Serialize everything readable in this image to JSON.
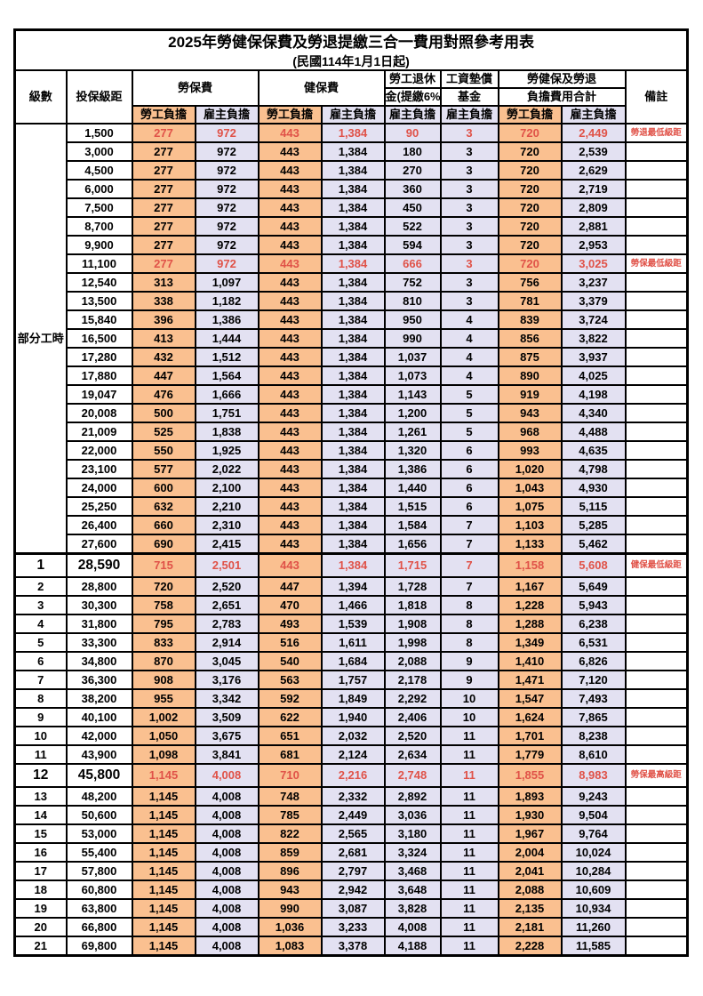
{
  "title": "2025年勞健保保費及勞退提繳三合一費用對照參考用表",
  "subtitle": "(民國114年1月1日起)",
  "colors": {
    "employee_bg": "#FAC090",
    "employer_bg": "#E3E1F2",
    "highlight_red": "#E05248",
    "border": "#000000"
  },
  "header": {
    "level": "級數",
    "bracket": "投保級距",
    "labor_insurance": "勞保費",
    "health_insurance": "健保費",
    "pension_line1": "勞工退休",
    "pension_line2": "金(提繳6%)",
    "wage_fund_line1": "工資墊償",
    "wage_fund_line2": "基金",
    "total_line1": "勞健保及勞退",
    "total_line2": "負擔費用合計",
    "remark": "備註",
    "employee": "勞工負擔",
    "employer": "雇主負擔"
  },
  "part_time_label": "部分工時",
  "part_time_span": 23,
  "rows": [
    {
      "level": null,
      "bracket": "1,500",
      "v": [
        "277",
        "972",
        "443",
        "1,384",
        "90",
        "3",
        "720",
        "2,449"
      ],
      "remark": "勞退最低級距",
      "hl": true,
      "big": false,
      "sect": false
    },
    {
      "level": null,
      "bracket": "3,000",
      "v": [
        "277",
        "972",
        "443",
        "1,384",
        "180",
        "3",
        "720",
        "2,539"
      ],
      "remark": "",
      "hl": false,
      "big": false,
      "sect": false
    },
    {
      "level": null,
      "bracket": "4,500",
      "v": [
        "277",
        "972",
        "443",
        "1,384",
        "270",
        "3",
        "720",
        "2,629"
      ],
      "remark": "",
      "hl": false,
      "big": false,
      "sect": false
    },
    {
      "level": null,
      "bracket": "6,000",
      "v": [
        "277",
        "972",
        "443",
        "1,384",
        "360",
        "3",
        "720",
        "2,719"
      ],
      "remark": "",
      "hl": false,
      "big": false,
      "sect": false
    },
    {
      "level": null,
      "bracket": "7,500",
      "v": [
        "277",
        "972",
        "443",
        "1,384",
        "450",
        "3",
        "720",
        "2,809"
      ],
      "remark": "",
      "hl": false,
      "big": false,
      "sect": false
    },
    {
      "level": null,
      "bracket": "8,700",
      "v": [
        "277",
        "972",
        "443",
        "1,384",
        "522",
        "3",
        "720",
        "2,881"
      ],
      "remark": "",
      "hl": false,
      "big": false,
      "sect": false
    },
    {
      "level": null,
      "bracket": "9,900",
      "v": [
        "277",
        "972",
        "443",
        "1,384",
        "594",
        "3",
        "720",
        "2,953"
      ],
      "remark": "",
      "hl": false,
      "big": false,
      "sect": false
    },
    {
      "level": null,
      "bracket": "11,100",
      "v": [
        "277",
        "972",
        "443",
        "1,384",
        "666",
        "3",
        "720",
        "3,025"
      ],
      "remark": "勞保最低級距",
      "hl": true,
      "big": false,
      "sect": false
    },
    {
      "level": null,
      "bracket": "12,540",
      "v": [
        "313",
        "1,097",
        "443",
        "1,384",
        "752",
        "3",
        "756",
        "3,237"
      ],
      "remark": "",
      "hl": false,
      "big": false,
      "sect": false
    },
    {
      "level": null,
      "bracket": "13,500",
      "v": [
        "338",
        "1,182",
        "443",
        "1,384",
        "810",
        "3",
        "781",
        "3,379"
      ],
      "remark": "",
      "hl": false,
      "big": false,
      "sect": false
    },
    {
      "level": null,
      "bracket": "15,840",
      "v": [
        "396",
        "1,386",
        "443",
        "1,384",
        "950",
        "4",
        "839",
        "3,724"
      ],
      "remark": "",
      "hl": false,
      "big": false,
      "sect": false
    },
    {
      "level": null,
      "bracket": "16,500",
      "v": [
        "413",
        "1,444",
        "443",
        "1,384",
        "990",
        "4",
        "856",
        "3,822"
      ],
      "remark": "",
      "hl": false,
      "big": false,
      "sect": false
    },
    {
      "level": null,
      "bracket": "17,280",
      "v": [
        "432",
        "1,512",
        "443",
        "1,384",
        "1,037",
        "4",
        "875",
        "3,937"
      ],
      "remark": "",
      "hl": false,
      "big": false,
      "sect": false
    },
    {
      "level": null,
      "bracket": "17,880",
      "v": [
        "447",
        "1,564",
        "443",
        "1,384",
        "1,073",
        "4",
        "890",
        "4,025"
      ],
      "remark": "",
      "hl": false,
      "big": false,
      "sect": false
    },
    {
      "level": null,
      "bracket": "19,047",
      "v": [
        "476",
        "1,666",
        "443",
        "1,384",
        "1,143",
        "5",
        "919",
        "4,198"
      ],
      "remark": "",
      "hl": false,
      "big": false,
      "sect": false
    },
    {
      "level": null,
      "bracket": "20,008",
      "v": [
        "500",
        "1,751",
        "443",
        "1,384",
        "1,200",
        "5",
        "943",
        "4,340"
      ],
      "remark": "",
      "hl": false,
      "big": false,
      "sect": false
    },
    {
      "level": null,
      "bracket": "21,009",
      "v": [
        "525",
        "1,838",
        "443",
        "1,384",
        "1,261",
        "5",
        "968",
        "4,488"
      ],
      "remark": "",
      "hl": false,
      "big": false,
      "sect": false
    },
    {
      "level": null,
      "bracket": "22,000",
      "v": [
        "550",
        "1,925",
        "443",
        "1,384",
        "1,320",
        "6",
        "993",
        "4,635"
      ],
      "remark": "",
      "hl": false,
      "big": false,
      "sect": false
    },
    {
      "level": null,
      "bracket": "23,100",
      "v": [
        "577",
        "2,022",
        "443",
        "1,384",
        "1,386",
        "6",
        "1,020",
        "4,798"
      ],
      "remark": "",
      "hl": false,
      "big": false,
      "sect": false
    },
    {
      "level": null,
      "bracket": "24,000",
      "v": [
        "600",
        "2,100",
        "443",
        "1,384",
        "1,440",
        "6",
        "1,043",
        "4,930"
      ],
      "remark": "",
      "hl": false,
      "big": false,
      "sect": false
    },
    {
      "level": null,
      "bracket": "25,250",
      "v": [
        "632",
        "2,210",
        "443",
        "1,384",
        "1,515",
        "6",
        "1,075",
        "5,115"
      ],
      "remark": "",
      "hl": false,
      "big": false,
      "sect": false
    },
    {
      "level": null,
      "bracket": "26,400",
      "v": [
        "660",
        "2,310",
        "443",
        "1,384",
        "1,584",
        "7",
        "1,103",
        "5,285"
      ],
      "remark": "",
      "hl": false,
      "big": false,
      "sect": false
    },
    {
      "level": null,
      "bracket": "27,600",
      "v": [
        "690",
        "2,415",
        "443",
        "1,384",
        "1,656",
        "7",
        "1,133",
        "5,462"
      ],
      "remark": "",
      "hl": false,
      "big": false,
      "sect": false
    },
    {
      "level": "1",
      "bracket": "28,590",
      "v": [
        "715",
        "2,501",
        "443",
        "1,384",
        "1,715",
        "7",
        "1,158",
        "5,608"
      ],
      "remark": "健保最低級距",
      "hl": true,
      "big": true,
      "sect": true
    },
    {
      "level": "2",
      "bracket": "28,800",
      "v": [
        "720",
        "2,520",
        "447",
        "1,394",
        "1,728",
        "7",
        "1,167",
        "5,649"
      ],
      "remark": "",
      "hl": false,
      "big": false,
      "sect": false
    },
    {
      "level": "3",
      "bracket": "30,300",
      "v": [
        "758",
        "2,651",
        "470",
        "1,466",
        "1,818",
        "8",
        "1,228",
        "5,943"
      ],
      "remark": "",
      "hl": false,
      "big": false,
      "sect": false
    },
    {
      "level": "4",
      "bracket": "31,800",
      "v": [
        "795",
        "2,783",
        "493",
        "1,539",
        "1,908",
        "8",
        "1,288",
        "6,238"
      ],
      "remark": "",
      "hl": false,
      "big": false,
      "sect": false
    },
    {
      "level": "5",
      "bracket": "33,300",
      "v": [
        "833",
        "2,914",
        "516",
        "1,611",
        "1,998",
        "8",
        "1,349",
        "6,531"
      ],
      "remark": "",
      "hl": false,
      "big": false,
      "sect": false
    },
    {
      "level": "6",
      "bracket": "34,800",
      "v": [
        "870",
        "3,045",
        "540",
        "1,684",
        "2,088",
        "9",
        "1,410",
        "6,826"
      ],
      "remark": "",
      "hl": false,
      "big": false,
      "sect": false
    },
    {
      "level": "7",
      "bracket": "36,300",
      "v": [
        "908",
        "3,176",
        "563",
        "1,757",
        "2,178",
        "9",
        "1,471",
        "7,120"
      ],
      "remark": "",
      "hl": false,
      "big": false,
      "sect": false
    },
    {
      "level": "8",
      "bracket": "38,200",
      "v": [
        "955",
        "3,342",
        "592",
        "1,849",
        "2,292",
        "10",
        "1,547",
        "7,493"
      ],
      "remark": "",
      "hl": false,
      "big": false,
      "sect": false
    },
    {
      "level": "9",
      "bracket": "40,100",
      "v": [
        "1,002",
        "3,509",
        "622",
        "1,940",
        "2,406",
        "10",
        "1,624",
        "7,865"
      ],
      "remark": "",
      "hl": false,
      "big": false,
      "sect": false
    },
    {
      "level": "10",
      "bracket": "42,000",
      "v": [
        "1,050",
        "3,675",
        "651",
        "2,032",
        "2,520",
        "11",
        "1,701",
        "8,238"
      ],
      "remark": "",
      "hl": false,
      "big": false,
      "sect": false
    },
    {
      "level": "11",
      "bracket": "43,900",
      "v": [
        "1,098",
        "3,841",
        "681",
        "2,124",
        "2,634",
        "11",
        "1,779",
        "8,610"
      ],
      "remark": "",
      "hl": false,
      "big": false,
      "sect": false
    },
    {
      "level": "12",
      "bracket": "45,800",
      "v": [
        "1,145",
        "4,008",
        "710",
        "2,216",
        "2,748",
        "11",
        "1,855",
        "8,983"
      ],
      "remark": "勞保最高級距",
      "hl": true,
      "big": true,
      "sect": false
    },
    {
      "level": "13",
      "bracket": "48,200",
      "v": [
        "1,145",
        "4,008",
        "748",
        "2,332",
        "2,892",
        "11",
        "1,893",
        "9,243"
      ],
      "remark": "",
      "hl": false,
      "big": false,
      "sect": false
    },
    {
      "level": "14",
      "bracket": "50,600",
      "v": [
        "1,145",
        "4,008",
        "785",
        "2,449",
        "3,036",
        "11",
        "1,930",
        "9,504"
      ],
      "remark": "",
      "hl": false,
      "big": false,
      "sect": false
    },
    {
      "level": "15",
      "bracket": "53,000",
      "v": [
        "1,145",
        "4,008",
        "822",
        "2,565",
        "3,180",
        "11",
        "1,967",
        "9,764"
      ],
      "remark": "",
      "hl": false,
      "big": false,
      "sect": false
    },
    {
      "level": "16",
      "bracket": "55,400",
      "v": [
        "1,145",
        "4,008",
        "859",
        "2,681",
        "3,324",
        "11",
        "2,004",
        "10,024"
      ],
      "remark": "",
      "hl": false,
      "big": false,
      "sect": false
    },
    {
      "level": "17",
      "bracket": "57,800",
      "v": [
        "1,145",
        "4,008",
        "896",
        "2,797",
        "3,468",
        "11",
        "2,041",
        "10,284"
      ],
      "remark": "",
      "hl": false,
      "big": false,
      "sect": false
    },
    {
      "level": "18",
      "bracket": "60,800",
      "v": [
        "1,145",
        "4,008",
        "943",
        "2,942",
        "3,648",
        "11",
        "2,088",
        "10,609"
      ],
      "remark": "",
      "hl": false,
      "big": false,
      "sect": false
    },
    {
      "level": "19",
      "bracket": "63,800",
      "v": [
        "1,145",
        "4,008",
        "990",
        "3,087",
        "3,828",
        "11",
        "2,135",
        "10,934"
      ],
      "remark": "",
      "hl": false,
      "big": false,
      "sect": false
    },
    {
      "level": "20",
      "bracket": "66,800",
      "v": [
        "1,145",
        "4,008",
        "1,036",
        "3,233",
        "4,008",
        "11",
        "2,181",
        "11,260"
      ],
      "remark": "",
      "hl": false,
      "big": false,
      "sect": false
    },
    {
      "level": "21",
      "bracket": "69,800",
      "v": [
        "1,145",
        "4,008",
        "1,083",
        "3,378",
        "4,188",
        "11",
        "2,228",
        "11,585"
      ],
      "remark": "",
      "hl": false,
      "big": false,
      "sect": false
    }
  ]
}
